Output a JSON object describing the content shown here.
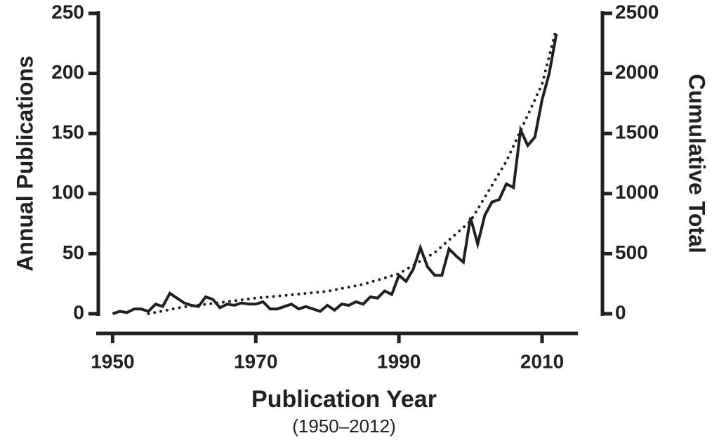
{
  "chart_data": {
    "type": "line",
    "x_label": "Publication Year",
    "subtitle": "(1950–2012)",
    "y_label": "Annual Publications",
    "y2_label": "Cumulative Total",
    "x": [
      1950,
      1951,
      1952,
      1953,
      1954,
      1955,
      1956,
      1957,
      1958,
      1959,
      1960,
      1961,
      1962,
      1963,
      1964,
      1965,
      1966,
      1967,
      1968,
      1969,
      1970,
      1971,
      1972,
      1973,
      1974,
      1975,
      1976,
      1977,
      1978,
      1979,
      1980,
      1981,
      1982,
      1983,
      1984,
      1985,
      1986,
      1987,
      1988,
      1989,
      1990,
      1991,
      1992,
      1993,
      1994,
      1995,
      1996,
      1997,
      1998,
      1999,
      2000,
      2001,
      2002,
      2003,
      2004,
      2005,
      2006,
      2007,
      2008,
      2009,
      2010,
      2011,
      2012
    ],
    "series": [
      {
        "color": "#231f20",
        "style": "solid",
        "values": [
          0,
          2,
          1,
          4,
          4,
          2,
          8,
          6,
          17,
          13,
          9,
          7,
          6,
          14,
          12,
          5,
          8,
          7,
          9,
          8,
          8,
          10,
          4,
          4,
          6,
          8,
          4,
          6,
          4,
          2,
          7,
          3,
          8,
          7,
          10,
          8,
          14,
          13,
          19,
          16,
          32,
          27,
          37,
          55,
          39,
          32,
          32,
          54,
          48,
          43,
          80,
          58,
          82,
          93,
          95,
          108,
          105,
          153,
          140,
          147,
          178,
          200,
          233
        ]
      },
      {
        "color": "#231f20",
        "style": "dotted",
        "axis": "y2",
        "x": [
          1955,
          1960,
          1965,
          1970,
          1975,
          1980,
          1985,
          1990,
          1995,
          2000,
          2005,
          2010,
          2012
        ],
        "values": [
          0,
          58,
          93,
          130,
          158,
          187,
          245,
          333,
          508,
          771,
          1268,
          1910,
          2377
        ]
      }
    ],
    "xlim": [
      1948,
      2015
    ],
    "xticks": [
      1950,
      1970,
      1990,
      2010
    ],
    "ylim": [
      0,
      250
    ],
    "yticks": [
      0,
      50,
      100,
      150,
      200,
      250
    ],
    "y2lim": [
      0,
      2500
    ],
    "y2ticks": [
      0,
      500,
      1000,
      1500,
      2000,
      2500
    ]
  }
}
